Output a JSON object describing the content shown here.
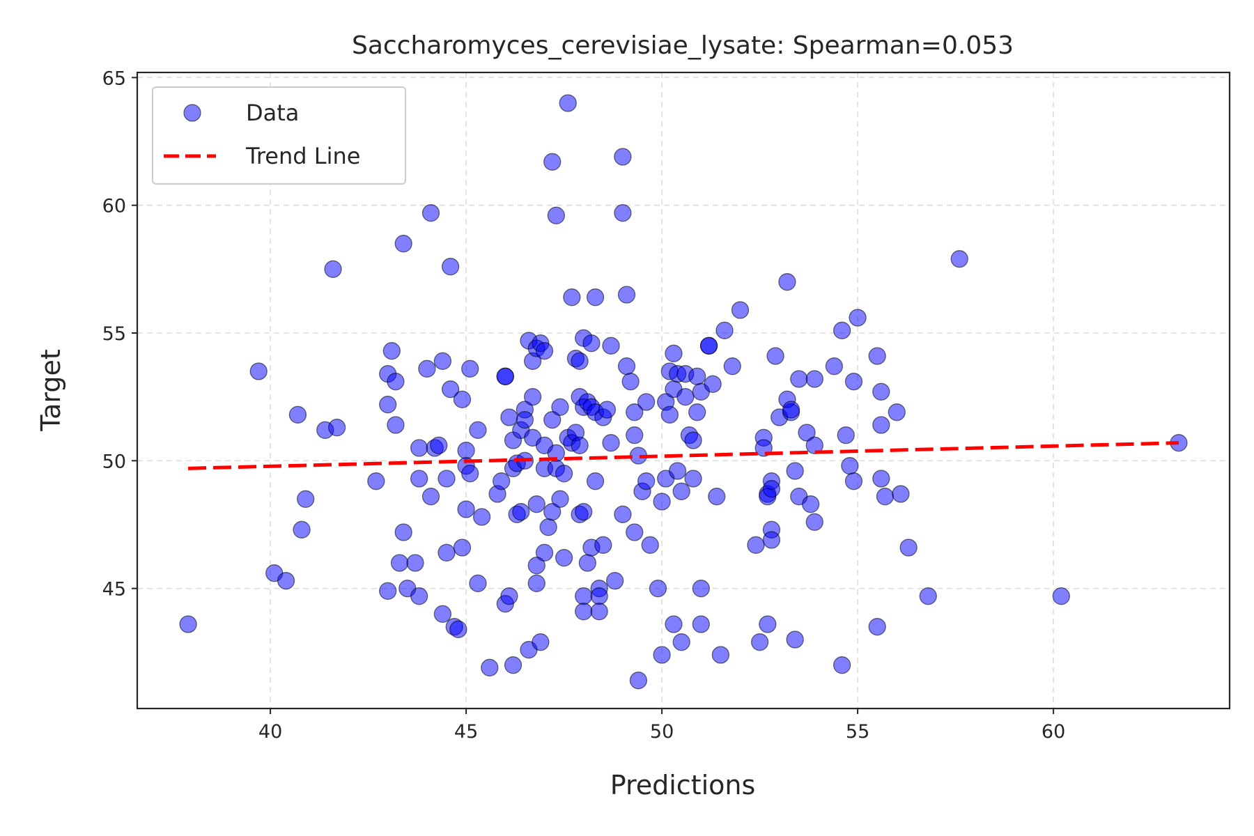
{
  "chart_data": {
    "type": "scatter",
    "title": "Saccharomyces_cerevisiae_lysate: Spearman=0.053",
    "xlabel": "Predictions",
    "ylabel": "Target",
    "xlim": [
      36.6,
      64.5
    ],
    "ylim": [
      40.3,
      65.2
    ],
    "xticks": [
      40,
      45,
      50,
      55,
      60
    ],
    "yticks": [
      45,
      50,
      55,
      60,
      65
    ],
    "grid": true,
    "legend": {
      "placement": "top-left",
      "entries": [
        {
          "label": "Data",
          "marker": "circle"
        },
        {
          "label": "Trend Line",
          "marker": "dashed-line"
        }
      ]
    },
    "colors": {
      "points_fill": "#0000ff",
      "points_edge": "#000000",
      "trend": "#ff0000"
    },
    "trend_line": {
      "x": [
        37.9,
        63.2
      ],
      "y": [
        49.7,
        50.7
      ]
    },
    "series": [
      {
        "name": "Data",
        "points": [
          [
            37.9,
            43.6
          ],
          [
            39.7,
            53.5
          ],
          [
            40.1,
            45.6
          ],
          [
            40.4,
            45.3
          ],
          [
            40.7,
            51.8
          ],
          [
            40.8,
            47.3
          ],
          [
            40.9,
            48.5
          ],
          [
            41.4,
            51.2
          ],
          [
            41.6,
            57.5
          ],
          [
            41.7,
            51.3
          ],
          [
            42.7,
            49.2
          ],
          [
            43.0,
            52.2
          ],
          [
            43.0,
            53.4
          ],
          [
            43.0,
            44.9
          ],
          [
            43.1,
            54.3
          ],
          [
            43.2,
            53.1
          ],
          [
            43.2,
            51.4
          ],
          [
            43.3,
            46.0
          ],
          [
            43.4,
            47.2
          ],
          [
            43.4,
            58.5
          ],
          [
            43.5,
            45.0
          ],
          [
            43.7,
            46.0
          ],
          [
            43.8,
            44.7
          ],
          [
            43.8,
            49.3
          ],
          [
            43.8,
            50.5
          ],
          [
            44.0,
            53.6
          ],
          [
            44.1,
            48.6
          ],
          [
            44.1,
            59.7
          ],
          [
            44.2,
            50.5
          ],
          [
            44.3,
            50.6
          ],
          [
            44.4,
            53.9
          ],
          [
            44.4,
            44.0
          ],
          [
            44.5,
            49.3
          ],
          [
            44.5,
            46.4
          ],
          [
            44.6,
            57.6
          ],
          [
            44.6,
            52.8
          ],
          [
            44.7,
            43.5
          ],
          [
            44.8,
            43.4
          ],
          [
            44.9,
            52.4
          ],
          [
            44.9,
            46.6
          ],
          [
            45.0,
            48.1
          ],
          [
            45.0,
            50.4
          ],
          [
            45.0,
            49.8
          ],
          [
            45.1,
            53.6
          ],
          [
            45.1,
            49.5
          ],
          [
            45.3,
            45.2
          ],
          [
            45.3,
            51.2
          ],
          [
            45.4,
            47.8
          ],
          [
            45.6,
            41.9
          ],
          [
            45.8,
            48.7
          ],
          [
            45.9,
            49.2
          ],
          [
            46.0,
            53.3
          ],
          [
            46.0,
            53.3
          ],
          [
            46.0,
            44.4
          ],
          [
            46.1,
            44.7
          ],
          [
            46.1,
            51.7
          ],
          [
            46.2,
            50.8
          ],
          [
            46.2,
            42.0
          ],
          [
            46.2,
            49.7
          ],
          [
            46.3,
            49.9
          ],
          [
            46.3,
            47.9
          ],
          [
            46.4,
            48.0
          ],
          [
            46.4,
            51.2
          ],
          [
            46.5,
            52.0
          ],
          [
            46.5,
            51.6
          ],
          [
            46.5,
            50.0
          ],
          [
            46.6,
            54.7
          ],
          [
            46.6,
            42.6
          ],
          [
            46.7,
            50.9
          ],
          [
            46.7,
            53.9
          ],
          [
            46.7,
            52.5
          ],
          [
            46.8,
            54.4
          ],
          [
            46.8,
            45.9
          ],
          [
            46.8,
            48.3
          ],
          [
            46.8,
            45.2
          ],
          [
            46.9,
            54.6
          ],
          [
            46.9,
            42.9
          ],
          [
            47.0,
            50.6
          ],
          [
            47.0,
            54.3
          ],
          [
            47.0,
            46.4
          ],
          [
            47.0,
            49.7
          ],
          [
            47.1,
            47.4
          ],
          [
            47.2,
            48.0
          ],
          [
            47.2,
            51.6
          ],
          [
            47.2,
            61.7
          ],
          [
            47.3,
            59.6
          ],
          [
            47.3,
            50.3
          ],
          [
            47.3,
            49.7
          ],
          [
            47.4,
            52.1
          ],
          [
            47.4,
            48.5
          ],
          [
            47.5,
            46.2
          ],
          [
            47.5,
            49.5
          ],
          [
            47.6,
            64.0
          ],
          [
            47.6,
            50.9
          ],
          [
            47.7,
            56.4
          ],
          [
            47.7,
            50.7
          ],
          [
            47.8,
            51.1
          ],
          [
            47.8,
            54.0
          ],
          [
            47.9,
            53.9
          ],
          [
            47.9,
            50.6
          ],
          [
            47.9,
            47.9
          ],
          [
            47.9,
            52.5
          ],
          [
            48.0,
            52.1
          ],
          [
            48.0,
            54.8
          ],
          [
            48.0,
            48.0
          ],
          [
            48.0,
            44.7
          ],
          [
            48.0,
            44.1
          ],
          [
            48.1,
            52.3
          ],
          [
            48.1,
            46.0
          ],
          [
            48.2,
            52.1
          ],
          [
            48.2,
            54.6
          ],
          [
            48.2,
            46.6
          ],
          [
            48.3,
            51.9
          ],
          [
            48.3,
            56.4
          ],
          [
            48.3,
            49.2
          ],
          [
            48.4,
            45.0
          ],
          [
            48.4,
            44.7
          ],
          [
            48.4,
            44.1
          ],
          [
            48.5,
            46.7
          ],
          [
            48.5,
            51.7
          ],
          [
            48.6,
            52.0
          ],
          [
            48.7,
            50.7
          ],
          [
            48.7,
            54.5
          ],
          [
            48.8,
            45.3
          ],
          [
            49.0,
            47.9
          ],
          [
            49.0,
            61.9
          ],
          [
            49.0,
            59.7
          ],
          [
            49.1,
            56.5
          ],
          [
            49.1,
            53.7
          ],
          [
            49.2,
            53.1
          ],
          [
            49.3,
            51.0
          ],
          [
            49.3,
            47.2
          ],
          [
            49.3,
            51.9
          ],
          [
            49.4,
            50.2
          ],
          [
            49.4,
            41.4
          ],
          [
            49.5,
            48.8
          ],
          [
            49.6,
            52.3
          ],
          [
            49.6,
            49.2
          ],
          [
            49.7,
            46.7
          ],
          [
            49.9,
            45.0
          ],
          [
            50.0,
            42.4
          ],
          [
            50.0,
            48.4
          ],
          [
            50.1,
            49.3
          ],
          [
            50.1,
            52.3
          ],
          [
            50.2,
            53.5
          ],
          [
            50.2,
            51.8
          ],
          [
            50.3,
            54.2
          ],
          [
            50.3,
            52.8
          ],
          [
            50.3,
            43.6
          ],
          [
            50.4,
            49.6
          ],
          [
            50.4,
            53.4
          ],
          [
            50.5,
            48.8
          ],
          [
            50.5,
            42.9
          ],
          [
            50.6,
            52.5
          ],
          [
            50.6,
            53.4
          ],
          [
            50.7,
            51.0
          ],
          [
            50.8,
            50.8
          ],
          [
            50.8,
            49.3
          ],
          [
            50.9,
            53.3
          ],
          [
            50.9,
            51.9
          ],
          [
            51.0,
            52.7
          ],
          [
            51.0,
            43.6
          ],
          [
            51.0,
            45.0
          ],
          [
            51.2,
            54.5
          ],
          [
            51.2,
            54.5
          ],
          [
            51.3,
            53.0
          ],
          [
            51.4,
            48.6
          ],
          [
            51.5,
            42.4
          ],
          [
            51.6,
            55.1
          ],
          [
            51.8,
            53.7
          ],
          [
            52.0,
            55.9
          ],
          [
            52.4,
            46.7
          ],
          [
            52.5,
            42.9
          ],
          [
            52.6,
            50.9
          ],
          [
            52.6,
            50.5
          ],
          [
            52.7,
            48.7
          ],
          [
            52.7,
            48.6
          ],
          [
            52.7,
            43.6
          ],
          [
            52.8,
            47.3
          ],
          [
            52.8,
            46.9
          ],
          [
            52.8,
            49.2
          ],
          [
            52.8,
            48.9
          ],
          [
            52.9,
            54.1
          ],
          [
            53.0,
            51.7
          ],
          [
            53.2,
            52.4
          ],
          [
            53.2,
            57.0
          ],
          [
            53.3,
            51.9
          ],
          [
            53.3,
            52.0
          ],
          [
            53.4,
            49.6
          ],
          [
            53.4,
            43.0
          ],
          [
            53.5,
            53.2
          ],
          [
            53.5,
            48.6
          ],
          [
            53.7,
            51.1
          ],
          [
            53.8,
            48.3
          ],
          [
            53.9,
            50.6
          ],
          [
            53.9,
            53.2
          ],
          [
            53.9,
            47.6
          ],
          [
            54.4,
            53.7
          ],
          [
            54.6,
            55.1
          ],
          [
            54.6,
            42.0
          ],
          [
            54.7,
            51.0
          ],
          [
            54.8,
            49.8
          ],
          [
            54.9,
            53.1
          ],
          [
            54.9,
            49.2
          ],
          [
            55.0,
            55.6
          ],
          [
            55.5,
            54.1
          ],
          [
            55.5,
            43.5
          ],
          [
            55.6,
            52.7
          ],
          [
            55.6,
            51.4
          ],
          [
            55.6,
            49.3
          ],
          [
            55.7,
            48.6
          ],
          [
            56.0,
            51.9
          ],
          [
            56.1,
            48.7
          ],
          [
            56.3,
            46.6
          ],
          [
            56.8,
            44.7
          ],
          [
            57.6,
            57.9
          ],
          [
            60.2,
            44.7
          ],
          [
            63.2,
            50.7
          ]
        ]
      }
    ]
  }
}
